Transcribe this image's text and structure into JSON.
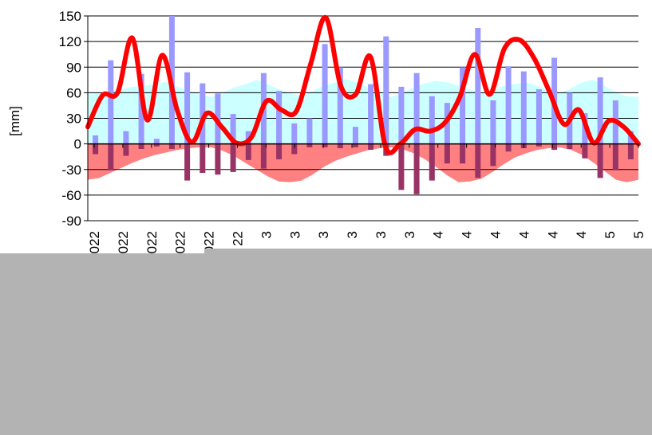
{
  "chart_data": {
    "type": "bar",
    "title": "",
    "xlabel": "",
    "ylabel": "[mm]",
    "ylim": [
      -90,
      150
    ],
    "yticks": [
      "150",
      "120",
      "90",
      "60",
      "30",
      "0",
      "-30",
      "-60",
      "-90"
    ],
    "grid": true,
    "legend": "none",
    "x_tick_labels": [
      "022",
      "022",
      "022",
      "022",
      "022",
      "22",
      "3",
      "3",
      "3",
      "3",
      "3",
      "3",
      "4",
      "4",
      "4",
      "4",
      "4",
      "4",
      "5",
      "5"
    ],
    "series": [
      {
        "type": "area",
        "color": "#ccffff",
        "values": [
          58,
          60,
          62,
          64,
          67,
          68,
          70,
          73,
          67,
          62,
          58,
          55,
          60,
          66,
          70,
          75,
          70,
          64,
          60,
          56,
          62,
          68,
          72,
          76,
          72,
          66,
          60,
          55,
          60,
          66,
          71,
          74,
          72,
          68,
          64,
          60,
          62,
          68,
          70,
          72,
          68,
          63,
          60,
          65,
          72,
          75,
          68,
          60,
          56,
          55
        ]
      },
      {
        "type": "area",
        "color": "#ff8080",
        "values": [
          -42,
          -40,
          -34,
          -28,
          -22,
          -17,
          -13,
          -10,
          -7,
          -5,
          -4,
          -4,
          -8,
          -14,
          -22,
          -30,
          -38,
          -44,
          -45,
          -43,
          -36,
          -27,
          -20,
          -15,
          -11,
          -7,
          -5,
          -4,
          -6,
          -11,
          -18,
          -27,
          -37,
          -45,
          -44,
          -41,
          -33,
          -24,
          -16,
          -11,
          -7,
          -5,
          -4,
          -7,
          -13,
          -22,
          -32,
          -42,
          -45,
          -42
        ]
      },
      {
        "type": "bar",
        "color": "#9999ff",
        "values": [
          10,
          98,
          15,
          82,
          6,
          150,
          84,
          71,
          59,
          35,
          15,
          83,
          62,
          24,
          30,
          117,
          90,
          20,
          70,
          126,
          67,
          83,
          56,
          48,
          90,
          136,
          51,
          91,
          85,
          64,
          101,
          60,
          36,
          78,
          51,
          15
        ]
      },
      {
        "type": "bar",
        "color": "#993366",
        "values": [
          -12,
          -31,
          -14,
          -6,
          -3,
          -6,
          -43,
          -34,
          -36,
          -33,
          -19,
          -29,
          -18,
          -12,
          -4,
          -4,
          -5,
          -4,
          -7,
          -14,
          -54,
          -59,
          -43,
          -23,
          -23,
          -40,
          -26,
          -9,
          -5,
          -3,
          -7,
          -6,
          -17,
          -40,
          -31,
          -18
        ]
      },
      {
        "type": "line",
        "color": "#ff0000",
        "values": [
          20,
          57,
          60,
          124,
          28,
          104,
          40,
          2,
          36,
          20,
          1,
          8,
          50,
          40,
          38,
          95,
          148,
          68,
          58,
          102,
          -3,
          0,
          17,
          15,
          25,
          55,
          105,
          58,
          112,
          122,
          100,
          62,
          23,
          40,
          1,
          27,
          20,
          0
        ]
      }
    ]
  }
}
